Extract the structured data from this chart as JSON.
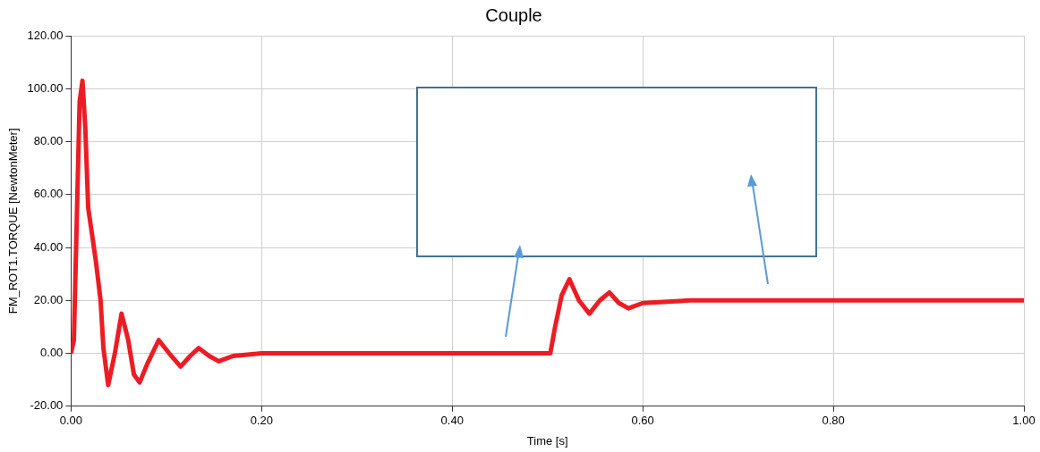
{
  "chart_data": {
    "type": "line",
    "title": "Couple",
    "xlabel": "Time [s]",
    "ylabel": "FM_ROT1.TORQUE [NewtonMeter]",
    "x": [
      0,
      0.003,
      0.006,
      0.009,
      0.012,
      0.015,
      0.018,
      0.022,
      0.026,
      0.031,
      0.034,
      0.039,
      0.046,
      0.053,
      0.06,
      0.066,
      0.072,
      0.08,
      0.092,
      0.103,
      0.115,
      0.125,
      0.134,
      0.145,
      0.155,
      0.17,
      0.2,
      0.25,
      0.3,
      0.35,
      0.4,
      0.45,
      0.503,
      0.508,
      0.515,
      0.523,
      0.533,
      0.544,
      0.555,
      0.565,
      0.575,
      0.585,
      0.6,
      0.65,
      0.7,
      0.8,
      0.9,
      1.0
    ],
    "series": [
      {
        "color": "#ed1c24",
        "values": [
          0,
          5,
          50,
          95,
          103,
          85,
          55,
          45,
          35,
          20,
          2,
          -12,
          0,
          15,
          5,
          -8,
          -11,
          -4,
          5,
          0,
          -5,
          -1,
          2,
          -1,
          -3,
          -1,
          0,
          0,
          0,
          0,
          0,
          0,
          0,
          10,
          22,
          28,
          20,
          15,
          20,
          23,
          19,
          17,
          19,
          20,
          20,
          20,
          20,
          20
        ]
      }
    ],
    "xlim": [
      0,
      1
    ],
    "xticks": [
      {
        "value": 0,
        "label": "0.00"
      },
      {
        "value": 0.2,
        "label": "0.20"
      },
      {
        "value": 0.4,
        "label": "0.40"
      },
      {
        "value": 0.6,
        "label": "0.60"
      },
      {
        "value": 0.8,
        "label": "0.80"
      },
      {
        "value": 1,
        "label": "1.00"
      }
    ],
    "ylim": [
      -20,
      120
    ],
    "yticks": [
      {
        "value": -20,
        "label": "-20.00"
      },
      {
        "value": 0,
        "label": "0.00"
      },
      {
        "value": 20,
        "label": "20.00"
      },
      {
        "value": 40,
        "label": "40.00"
      },
      {
        "value": 60,
        "label": "60.00"
      },
      {
        "value": 80,
        "label": "80.00"
      },
      {
        "value": 100,
        "label": "100.00"
      },
      {
        "value": 120,
        "label": "120.00"
      }
    ],
    "grid": true,
    "legend": false,
    "marker": "none",
    "line_style": "solid"
  }
}
